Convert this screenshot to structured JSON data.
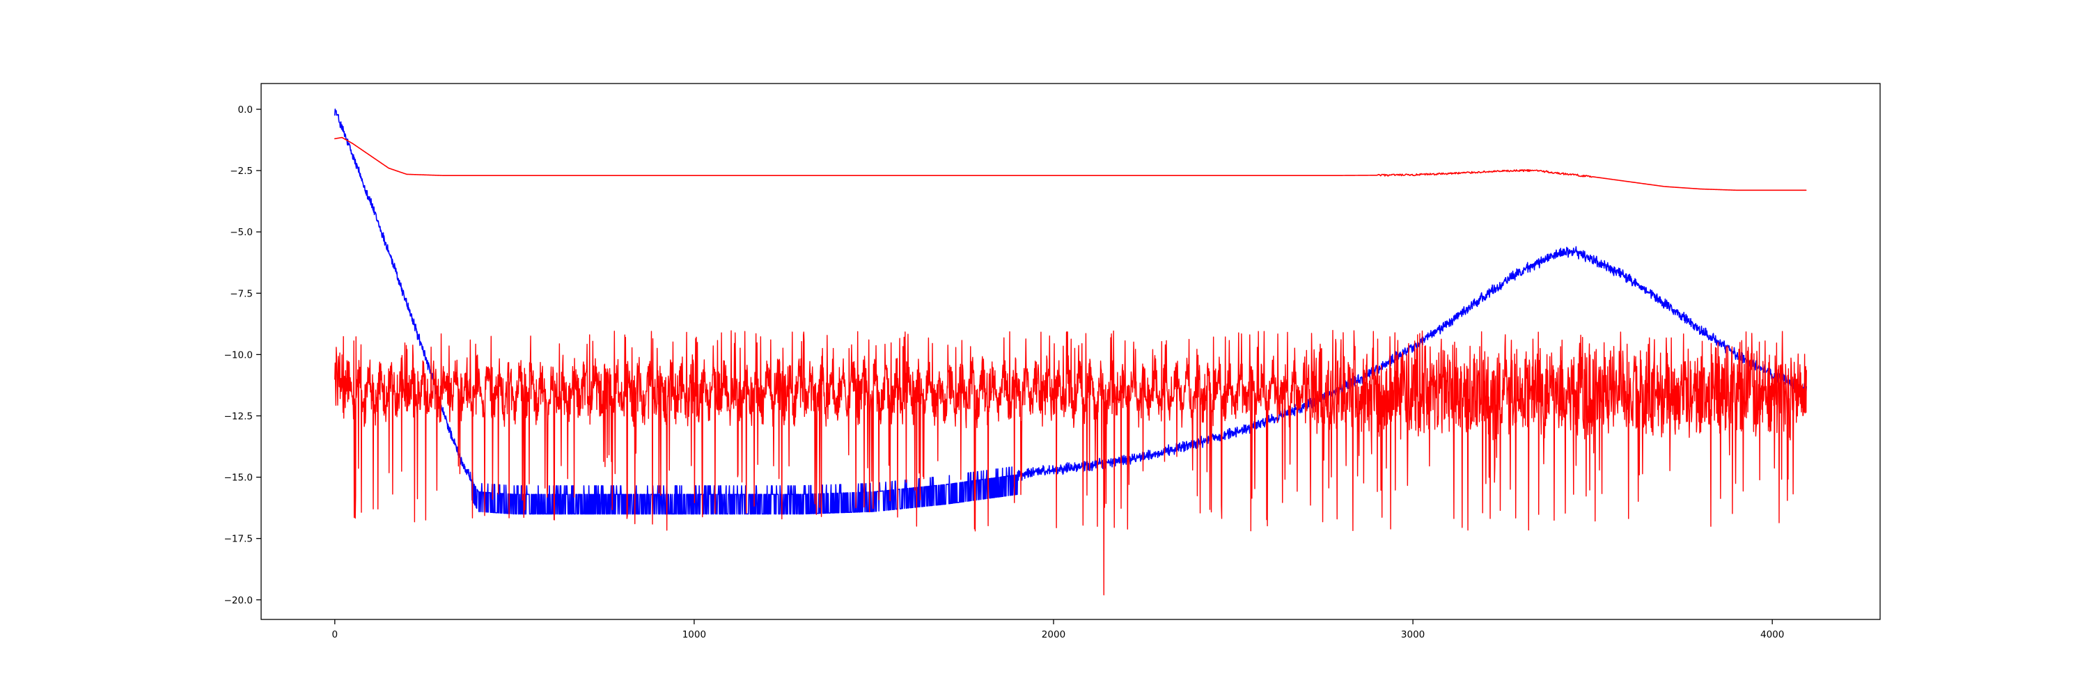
{
  "chart_data": {
    "type": "line",
    "title": "",
    "xlabel": "",
    "ylabel": "",
    "xlim": [
      -205,
      4300
    ],
    "ylim": [
      -20.8,
      1.05
    ],
    "grid": false,
    "legend": "none",
    "x_ticks": [
      {
        "value": 0,
        "label": "0"
      },
      {
        "value": 1000,
        "label": "1000"
      },
      {
        "value": 2000,
        "label": "2000"
      },
      {
        "value": 3000,
        "label": "3000"
      },
      {
        "value": 4000,
        "label": "4000"
      }
    ],
    "y_ticks": [
      {
        "value": 0,
        "label": "0.0"
      },
      {
        "value": -2.5,
        "label": "−2.5"
      },
      {
        "value": -5,
        "label": "−5.0"
      },
      {
        "value": -7.5,
        "label": "−7.5"
      },
      {
        "value": -10,
        "label": "−10.0"
      },
      {
        "value": -12.5,
        "label": "−12.5"
      },
      {
        "value": -15,
        "label": "−15.0"
      },
      {
        "value": -17.5,
        "label": "−17.5"
      },
      {
        "value": -20,
        "label": "−20.0"
      }
    ],
    "series": [
      {
        "color": "#0000ff",
        "style": "noisy",
        "x_max": 4095,
        "anchors_x": [
          0,
          50,
          100,
          150,
          200,
          250,
          300,
          350,
          400,
          500,
          700,
          1000,
          1300,
          1500,
          1700,
          1900,
          2000,
          2100,
          2200,
          2300,
          2400,
          2500,
          2600,
          2700,
          2800,
          2900,
          3000,
          3100,
          3200,
          3300,
          3400,
          3450,
          3500,
          3600,
          3700,
          3800,
          3900,
          4000,
          4095
        ],
        "anchors_y": [
          0.0,
          -1.9,
          -3.8,
          -5.8,
          -7.9,
          -10.0,
          -12.3,
          -14.3,
          -15.6,
          -15.7,
          -15.7,
          -15.7,
          -15.7,
          -15.6,
          -15.3,
          -14.9,
          -14.7,
          -14.5,
          -14.3,
          -14.0,
          -13.6,
          -13.2,
          -12.7,
          -12.1,
          -11.4,
          -10.6,
          -9.7,
          -8.7,
          -7.6,
          -6.6,
          -5.9,
          -5.8,
          -6.1,
          -6.9,
          -7.9,
          -9.0,
          -10.0,
          -10.8,
          -11.4
        ],
        "noise_amplitude": 0.25
      },
      {
        "color": "#ff0000",
        "style": "smooth",
        "x_max": 4095,
        "anchors_x": [
          0,
          20,
          50,
          100,
          150,
          200,
          300,
          500,
          1000,
          2000,
          2800,
          3000,
          3100,
          3200,
          3300,
          3350,
          3400,
          3500,
          3600,
          3700,
          3800,
          3900,
          4000,
          4095
        ],
        "anchors_y": [
          -1.2,
          -1.15,
          -1.4,
          -1.9,
          -2.4,
          -2.65,
          -2.7,
          -2.7,
          -2.7,
          -2.7,
          -2.7,
          -2.68,
          -2.62,
          -2.55,
          -2.5,
          -2.5,
          -2.6,
          -2.75,
          -2.95,
          -3.15,
          -3.25,
          -3.3,
          -3.3,
          -3.3
        ],
        "noise_amplitude": 0.03
      },
      {
        "color": "#ff0000",
        "style": "spiky",
        "x_max": 4095,
        "baseline": -11.5,
        "upper_bound": -9.0,
        "typical_lower": -16.0,
        "min_y": -19.8,
        "min_x": 2140
      }
    ]
  }
}
